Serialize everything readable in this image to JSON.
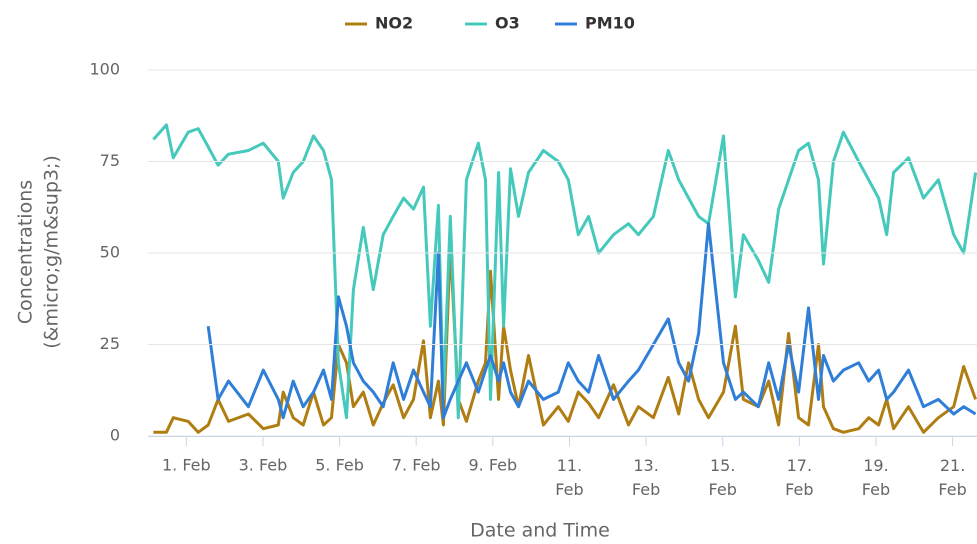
{
  "chart_data": {
    "type": "line",
    "x_label": "Date and Time",
    "y_label": [
      "Concentrations",
      "(&micro;g/m&sup3;)"
    ],
    "x": [
      0.14,
      0.48,
      0.66,
      1.05,
      1.31,
      1.57,
      1.83,
      2.1,
      2.62,
      3.01,
      3.4,
      3.53,
      3.79,
      4.05,
      4.32,
      4.58,
      4.79,
      4.97,
      5.18,
      5.36,
      5.62,
      5.88,
      6.14,
      6.4,
      6.67,
      6.93,
      7.19,
      7.37,
      7.58,
      7.71,
      7.89,
      8.1,
      8.31,
      8.62,
      8.81,
      8.94,
      9.15,
      9.28,
      9.46,
      9.67,
      9.93,
      10.32,
      10.71,
      10.97,
      11.23,
      11.5,
      11.76,
      12.15,
      12.54,
      12.8,
      13.19,
      13.58,
      13.85,
      14.11,
      14.37,
      14.63,
      15.02,
      15.33,
      15.54,
      15.93,
      16.2,
      16.46,
      16.72,
      16.98,
      17.24,
      17.5,
      17.63,
      17.89,
      18.15,
      18.55,
      18.81,
      19.07,
      19.28,
      19.46,
      19.85,
      20.24,
      20.63,
      21.03,
      21.29,
      21.6
    ],
    "series": [
      {
        "name": "NO2",
        "color": "#b07d12",
        "values": [
          1,
          1,
          5,
          4,
          1,
          3,
          10,
          4,
          6,
          2,
          3,
          12,
          5,
          3,
          12,
          3,
          5,
          25,
          20,
          8,
          12,
          3,
          9,
          14,
          5,
          10,
          26,
          5,
          15,
          3,
          52,
          10,
          4,
          15,
          20,
          45,
          10,
          30,
          18,
          8,
          22,
          3,
          8,
          4,
          12,
          9,
          5,
          14,
          3,
          8,
          5,
          16,
          6,
          20,
          10,
          5,
          12,
          30,
          10,
          8,
          15,
          3,
          28,
          5,
          3,
          25,
          8,
          2,
          1,
          2,
          5,
          3,
          10,
          2,
          8,
          1,
          5,
          8,
          19,
          10
        ]
      },
      {
        "name": "O3",
        "color": "#45c9bc",
        "values": [
          81,
          85,
          76,
          83,
          84,
          79,
          74,
          77,
          78,
          80,
          75,
          65,
          72,
          75,
          82,
          78,
          70,
          20,
          5,
          40,
          57,
          40,
          55,
          60,
          65,
          62,
          68,
          30,
          63,
          10,
          60,
          5,
          70,
          80,
          70,
          10,
          72,
          30,
          73,
          60,
          72,
          78,
          75,
          70,
          55,
          60,
          50,
          55,
          58,
          55,
          60,
          78,
          70,
          65,
          60,
          58,
          82,
          38,
          55,
          48,
          42,
          62,
          70,
          78,
          80,
          70,
          47,
          75,
          83,
          75,
          70,
          65,
          55,
          72,
          76,
          65,
          70,
          55,
          50,
          72
        ]
      },
      {
        "name": "PM10",
        "color": "#2f7ed8",
        "values": [
          null,
          null,
          null,
          null,
          null,
          30,
          10,
          15,
          8,
          18,
          10,
          5,
          15,
          8,
          12,
          18,
          10,
          38,
          30,
          20,
          15,
          12,
          8,
          20,
          10,
          18,
          12,
          8,
          50,
          5,
          10,
          15,
          20,
          12,
          18,
          22,
          15,
          20,
          12,
          8,
          15,
          10,
          12,
          20,
          15,
          12,
          22,
          10,
          15,
          18,
          25,
          32,
          20,
          15,
          28,
          58,
          20,
          10,
          12,
          8,
          20,
          10,
          25,
          12,
          35,
          10,
          22,
          15,
          18,
          20,
          15,
          18,
          10,
          12,
          18,
          8,
          10,
          6,
          8,
          6
        ]
      }
    ],
    "xlim": [
      0,
      21.65
    ],
    "xticks": [
      {
        "value": 1,
        "label": "1. Feb"
      },
      {
        "value": 3,
        "label": "3. Feb"
      },
      {
        "value": 5,
        "label": "5. Feb"
      },
      {
        "value": 7,
        "label": "7. Feb"
      },
      {
        "value": 9,
        "label": "9. Feb"
      },
      {
        "value": 11,
        "label": "11. Feb"
      },
      {
        "value": 13,
        "label": "13. Feb"
      },
      {
        "value": 15,
        "label": "15. Feb"
      },
      {
        "value": 17,
        "label": "17. Feb"
      },
      {
        "value": 19,
        "label": "19. Feb"
      },
      {
        "value": 21,
        "label": "21. Feb"
      }
    ],
    "ylim": [
      0,
      100
    ],
    "yticks": [
      0,
      25,
      50,
      75,
      100
    ],
    "grid": true,
    "legend": "top"
  }
}
